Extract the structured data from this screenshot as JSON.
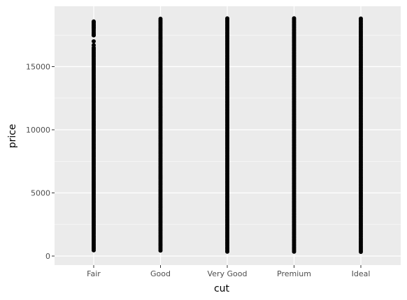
{
  "chart_data": {
    "type": "scatter",
    "title": "",
    "xlabel": "cut",
    "ylabel": "price",
    "categories": [
      "Fair",
      "Good",
      "Very Good",
      "Premium",
      "Ideal"
    ],
    "ylim": [
      0,
      19500
    ],
    "yticks": [
      0,
      5000,
      10000,
      15000
    ],
    "ytick_labels": [
      "0",
      "5000",
      "10000",
      "15000"
    ],
    "grid": true,
    "legend": "none",
    "panel_background": "#ebebeb",
    "grid_color": "#ffffff",
    "point_color": "#000000",
    "series": [
      {
        "values": [
          {
            "category": "Fair",
            "ranges": [
              [
                337,
                16500
              ],
              [
                17400,
                18574
              ]
            ],
            "scattered": [
              [
                16700,
                17000,
                17500,
                18100,
                18300,
                18500
              ],
              [
                330,
                700,
                1100,
                12500
              ]
            ]
          },
          {
            "category": "Good",
            "ranges": [
              [
                327,
                18788
              ]
            ],
            "scattered": [
              []
            ]
          },
          {
            "category": "Very Good",
            "ranges": [
              [
                336,
                18818
              ]
            ],
            "scattered": [
              []
            ]
          },
          {
            "category": "Premium",
            "ranges": [
              [
                326,
                18823
              ]
            ],
            "scattered": [
              []
            ]
          },
          {
            "category": "Ideal",
            "ranges": [
              [
                326,
                18806
              ]
            ],
            "scattered": [
              []
            ]
          }
        ]
      }
    ]
  }
}
